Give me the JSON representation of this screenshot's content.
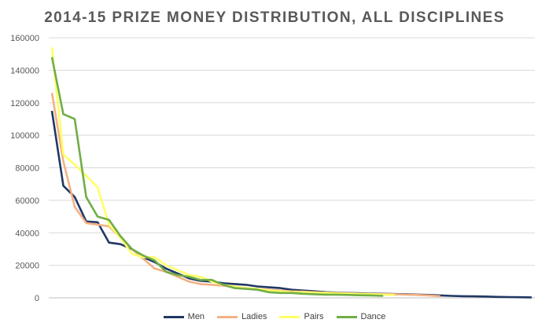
{
  "chart_data": {
    "type": "line",
    "title": "2014-15 PRIZE MONEY DISTRIBUTION, ALL DISCIPLINES",
    "xlabel": "",
    "ylabel": "",
    "ylim": [
      0,
      160000
    ],
    "yticks": [
      "0",
      "20000",
      "40000",
      "60000",
      "80000",
      "100000",
      "120000",
      "140000",
      "160000"
    ],
    "grid": true,
    "legend_position": "bottom",
    "series": [
      {
        "name": "Men",
        "color": "#203864",
        "values": [
          115000,
          69000,
          62000,
          47000,
          46500,
          34000,
          33000,
          30000,
          25000,
          22000,
          18000,
          15000,
          12000,
          10500,
          10000,
          9000,
          8500,
          8000,
          7000,
          6500,
          6000,
          5000,
          4500,
          4000,
          3500,
          3200,
          3000,
          2800,
          2600,
          2500,
          2300,
          2200,
          2000,
          1800,
          1500,
          1200,
          1000,
          900,
          800,
          600,
          500,
          400,
          300
        ]
      },
      {
        "name": "Ladies",
        "color": "#F4B183",
        "values": [
          126000,
          84000,
          56000,
          46000,
          45000,
          44000,
          37000,
          30000,
          24000,
          18000,
          16000,
          13000,
          10000,
          8500,
          8000,
          7500,
          6500,
          6000,
          5500,
          5000,
          4500,
          4000,
          3800,
          3500,
          3200,
          3000,
          2800,
          2500,
          2400,
          2300,
          2200,
          2000,
          1800,
          1500,
          1000
        ]
      },
      {
        "name": "Pairs",
        "color": "#FFFF66",
        "values": [
          154000,
          88000,
          82000,
          75000,
          68000,
          45000,
          37000,
          27000,
          25000,
          25000,
          20000,
          17000,
          14000,
          13000,
          10000,
          8000,
          7000,
          6000,
          5500,
          4500,
          4000,
          3500,
          3500,
          3200,
          3000,
          2800,
          2500,
          2500,
          2300,
          2000,
          1800
        ]
      },
      {
        "name": "Dance",
        "color": "#70AD47",
        "values": [
          148000,
          113000,
          110000,
          62000,
          50000,
          48000,
          38000,
          30000,
          26000,
          23000,
          16000,
          14000,
          13000,
          11000,
          11000,
          8000,
          6000,
          5500,
          5000,
          3500,
          3000,
          3000,
          2500,
          2200,
          2000,
          2000,
          1800,
          1600,
          1500,
          1200
        ]
      }
    ]
  }
}
